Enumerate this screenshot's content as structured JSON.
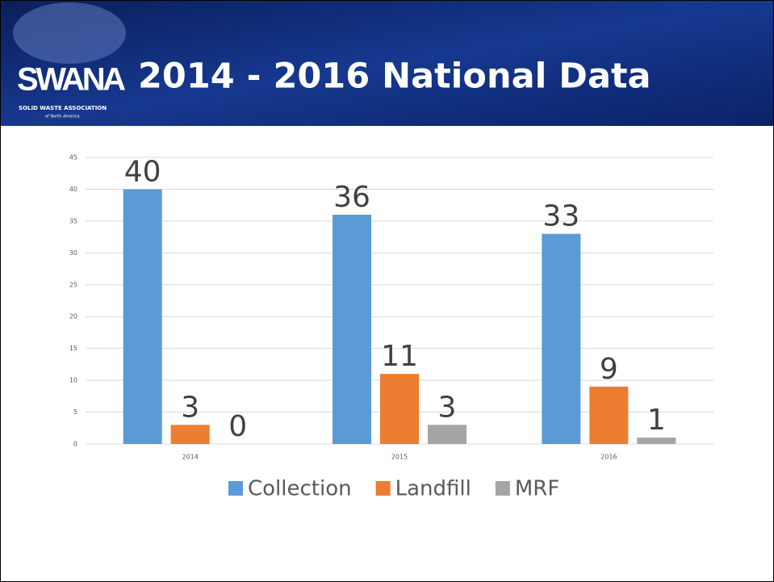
{
  "header": {
    "logo": "SWANA",
    "logo_line1": "SOLID WASTE ASSOCIATION",
    "logo_line2": "of North America"
  },
  "chart_data": {
    "type": "bar",
    "title": "2014 - 2016 National Data",
    "categories": [
      "2014",
      "2015",
      "2016"
    ],
    "series": [
      {
        "name": "Collection",
        "color": "#5b9bd5",
        "values": [
          40,
          36,
          33
        ]
      },
      {
        "name": "Landfill",
        "color": "#ed7d31",
        "values": [
          3,
          11,
          9
        ]
      },
      {
        "name": "MRF",
        "color": "#a5a5a5",
        "values": [
          0,
          3,
          1
        ]
      }
    ],
    "ylim": [
      0,
      45
    ],
    "yticks": [
      0,
      5,
      10,
      15,
      20,
      25,
      30,
      35,
      40,
      45
    ],
    "grid": true,
    "legend": "bottom"
  }
}
